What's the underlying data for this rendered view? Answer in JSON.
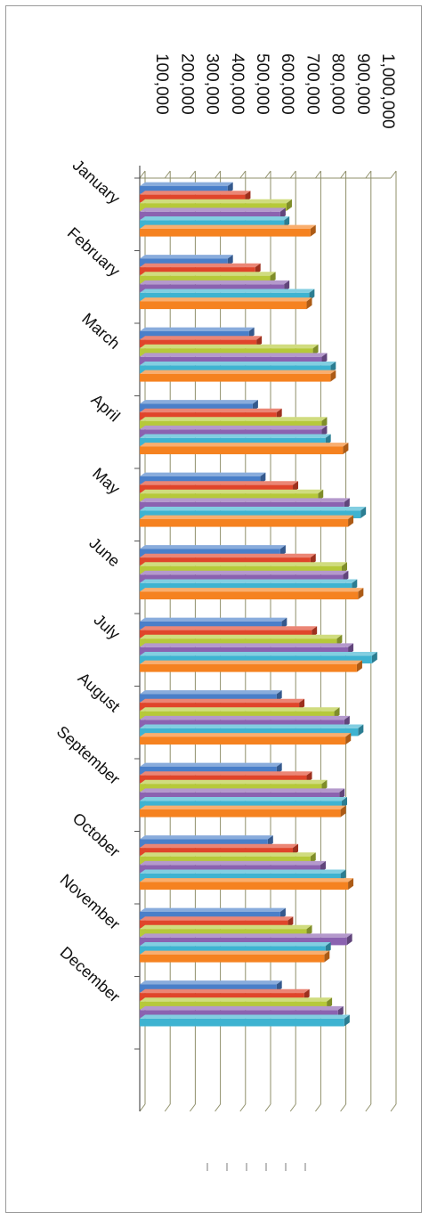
{
  "chart_data": {
    "type": "bar",
    "orientation": "horizontal-3d",
    "categories": [
      "January",
      "February",
      "March",
      "April",
      "May",
      "June",
      "July",
      "August",
      "September",
      "October",
      "November",
      "December"
    ],
    "ylim": [
      0,
      1000000
    ],
    "tick_labels": [
      "100,000",
      "200,000",
      "300,000",
      "400,000",
      "500,000",
      "600,000",
      "700,000",
      "800,000",
      "900,000",
      "1,000,000"
    ],
    "tick_values": [
      100000,
      200000,
      300000,
      400000,
      500000,
      600000,
      700000,
      800000,
      900000,
      1000000
    ],
    "grid": true,
    "legend": "bottom",
    "series": [
      {
        "color": "#4a7fc9",
        "values": [
          350000,
          350000,
          435000,
          450000,
          480000,
          560000,
          565000,
          545000,
          545000,
          510000,
          560000,
          545000
        ]
      },
      {
        "color": "#e0452b",
        "values": [
          420000,
          460000,
          465000,
          545000,
          610000,
          680000,
          685000,
          635000,
          665000,
          610000,
          590000,
          655000
        ]
      },
      {
        "color": "#b6c93a",
        "values": [
          585000,
          520000,
          690000,
          725000,
          710000,
          805000,
          785000,
          775000,
          725000,
          680000,
          665000,
          745000
        ]
      },
      {
        "color": "#8b62b0",
        "values": [
          560000,
          575000,
          725000,
          725000,
          815000,
          810000,
          830000,
          815000,
          795000,
          720000,
          825000,
          790000
        ]
      },
      {
        "color": "#3eb3d1",
        "values": [
          575000,
          675000,
          760000,
          740000,
          880000,
          845000,
          925000,
          870000,
          805000,
          800000,
          740000,
          815000
        ]
      },
      {
        "color": "#f58220",
        "values": [
          680000,
          665000,
          760000,
          810000,
          830000,
          870000,
          865000,
          820000,
          800000,
          830000,
          735000,
          null
        ]
      }
    ]
  }
}
